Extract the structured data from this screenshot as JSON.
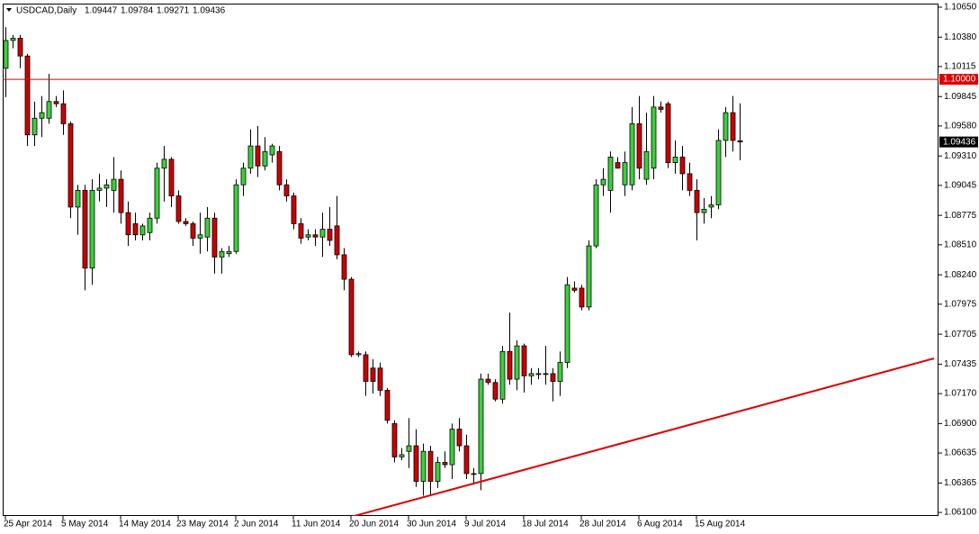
{
  "chart_data": {
    "type": "candlestick",
    "title": "USDCAD,Daily",
    "categories": [
      "25 Apr 2014",
      null,
      null,
      null,
      null,
      null,
      null,
      null,
      "5 May 2014",
      null,
      null,
      null,
      null,
      null,
      null,
      null,
      "14 May 2014",
      null,
      null,
      null,
      null,
      null,
      null,
      null,
      "23 May 2014",
      null,
      null,
      null,
      null,
      null,
      null,
      null,
      "2 Jun 2014",
      null,
      null,
      null,
      null,
      null,
      null,
      null,
      "11 Jun 2014",
      null,
      null,
      null,
      null,
      null,
      null,
      null,
      "20 Jun 2014",
      null,
      null,
      null,
      null,
      null,
      null,
      null,
      "30 Jun 2014",
      null,
      null,
      null,
      null,
      null,
      null,
      null,
      "9 Jul 2014",
      null,
      null,
      null,
      null,
      null,
      null,
      null,
      "18 Jul 2014",
      null,
      null,
      null,
      null,
      null,
      null,
      null,
      "28 Jul 2014",
      null,
      null,
      null,
      null,
      null,
      null,
      null,
      "6 Aug 2014",
      null,
      null,
      null,
      null,
      null,
      null,
      null,
      "15 Aug 2014",
      null,
      null,
      null,
      null,
      null,
      null
    ],
    "open": [
      1.101,
      1.1035,
      1.1037,
      1.1021,
      1.095,
      1.0965,
      1.0965,
      1.098,
      1.0978,
      1.096,
      1.0885,
      1.09,
      1.083,
      1.09,
      1.0902,
      1.09,
      1.091,
      1.088,
      1.087,
      1.086,
      1.0862,
      1.0875,
      1.092,
      1.0928,
      1.0895,
      1.0872,
      1.087,
      1.0857,
      1.0858,
      1.0875,
      1.084,
      1.0843,
      1.0845,
      1.0905,
      1.092,
      1.094,
      1.0922,
      1.0932,
      1.0935,
      1.0905,
      1.0895,
      1.087,
      1.0858,
      1.086,
      1.0858,
      1.0865,
      1.0868,
      1.0842,
      1.082,
      1.0752,
      1.0752,
      1.074,
      1.074,
      1.072,
      1.069,
      1.066,
      1.0665,
      1.067,
      1.0638,
      1.0665,
      1.0638,
      1.0655,
      1.0653,
      1.0685,
      1.067,
      1.0645,
      1.0645,
      1.073,
      1.0727,
      1.0712,
      1.0755,
      1.073,
      1.076,
      1.0733,
      1.0735,
      1.0735,
      1.0735,
      1.0728,
      1.0745,
      1.0812,
      1.0812,
      1.0795,
      1.085,
      1.0905,
      1.09,
      1.0925,
      1.0905,
      1.0905,
      1.096,
      1.091,
      1.092,
      1.0975,
      1.0978,
      1.0925,
      1.093,
      1.0915,
      1.09,
      1.088,
      1.0885,
      1.0887,
      1.0945,
      1.097,
      1.09447
    ],
    "high": [
      1.1047,
      1.104,
      1.104,
      1.1023,
      1.098,
      1.0985,
      1.1005,
      1.0985,
      1.099,
      1.0962,
      1.0905,
      1.0905,
      1.091,
      1.0915,
      1.091,
      1.093,
      1.0918,
      1.089,
      1.088,
      1.087,
      1.088,
      1.0925,
      1.094,
      1.093,
      1.09,
      1.0875,
      1.0872,
      1.088,
      1.0885,
      1.088,
      1.0848,
      1.085,
      1.091,
      1.0925,
      1.0955,
      1.0958,
      1.0948,
      1.0942,
      1.094,
      1.091,
      1.0898,
      1.0875,
      1.0865,
      1.0865,
      1.088,
      1.0885,
      1.0895,
      1.0848,
      1.0822,
      1.0755,
      1.0755,
      1.0748,
      1.0745,
      1.0722,
      1.0693,
      1.0668,
      1.0695,
      1.0685,
      1.0672,
      1.067,
      1.066,
      1.0665,
      1.069,
      1.0695,
      1.068,
      1.065,
      1.0735,
      1.0735,
      1.073,
      1.076,
      1.079,
      1.0765,
      1.0762,
      1.074,
      1.074,
      1.076,
      1.074,
      1.0755,
      1.0822,
      1.0818,
      1.0815,
      1.0855,
      1.091,
      1.092,
      1.0935,
      1.093,
      1.0935,
      1.0975,
      1.0985,
      1.097,
      1.0985,
      1.098,
      1.098,
      1.0945,
      1.094,
      1.0925,
      1.091,
      1.0893,
      1.0895,
      1.0955,
      1.0975,
      1.0985,
      1.09784
    ],
    "low": [
      1.0984,
      1.1028,
      1.101,
      1.094,
      1.094,
      1.0948,
      1.096,
      1.0975,
      1.095,
      1.0875,
      1.086,
      1.081,
      1.0815,
      1.089,
      1.0885,
      1.088,
      1.087,
      1.085,
      1.0855,
      1.0855,
      1.0855,
      1.087,
      1.089,
      1.0885,
      1.087,
      1.0868,
      1.085,
      1.0843,
      1.0845,
      1.0825,
      1.0825,
      1.084,
      1.0843,
      1.0895,
      1.0915,
      1.0912,
      1.0918,
      1.0925,
      1.09,
      1.089,
      1.0865,
      1.0852,
      1.0855,
      1.085,
      1.084,
      1.085,
      1.0838,
      1.081,
      1.075,
      1.075,
      1.0715,
      1.0717,
      1.0715,
      1.069,
      1.0655,
      1.0657,
      1.065,
      1.0633,
      1.0625,
      1.0625,
      1.0632,
      1.065,
      1.064,
      1.0665,
      1.064,
      1.0635,
      1.063,
      1.0725,
      1.071,
      1.0708,
      1.0725,
      1.072,
      1.0718,
      1.0725,
      1.073,
      1.0725,
      1.071,
      1.0715,
      1.074,
      1.0808,
      1.0792,
      1.0792,
      1.0848,
      1.0895,
      1.088,
      1.092,
      1.0895,
      1.09,
      1.091,
      1.0905,
      1.091,
      1.097,
      1.092,
      1.0915,
      1.09,
      1.0895,
      1.0855,
      1.087,
      1.0875,
      1.0883,
      1.093,
      1.0935,
      1.09271
    ],
    "close": [
      1.1035,
      1.1037,
      1.1021,
      1.095,
      1.0965,
      1.097,
      1.098,
      1.0978,
      1.096,
      1.0885,
      1.09,
      1.083,
      1.09,
      1.0902,
      1.0905,
      1.091,
      1.088,
      1.086,
      1.086,
      1.0868,
      1.0875,
      1.092,
      1.0928,
      1.0895,
      1.0872,
      1.087,
      1.0857,
      1.086,
      1.0875,
      1.084,
      1.0845,
      1.0845,
      1.0905,
      1.092,
      1.094,
      1.0922,
      1.0935,
      1.094,
      1.0905,
      1.0895,
      1.087,
      1.0857,
      1.086,
      1.0858,
      1.0865,
      1.0855,
      1.0842,
      1.082,
      1.0752,
      1.0753,
      1.0728,
      1.0728,
      1.072,
      1.0693,
      1.066,
      1.0662,
      1.067,
      1.0638,
      1.0665,
      1.0638,
      1.0655,
      1.0653,
      1.0685,
      1.067,
      1.0645,
      1.0645,
      1.073,
      1.0727,
      1.0712,
      1.0755,
      1.073,
      1.076,
      1.0733,
      1.0735,
      1.0735,
      1.0735,
      1.0728,
      1.0745,
      1.0815,
      1.081,
      1.0795,
      1.085,
      1.0905,
      1.091,
      1.093,
      1.092,
      1.0925,
      1.096,
      1.092,
      1.0935,
      1.0975,
      1.0973,
      1.0925,
      1.093,
      1.0915,
      1.09,
      1.088,
      1.0883,
      1.0887,
      1.0945,
      1.097,
      1.0945,
      1.09436
    ],
    "up_color": "#3ccf3c",
    "down_color": "#cc0000",
    "ylim": [
      1.06068,
      1.10682
    ],
    "yticks": [
      {
        "value": 1.1065,
        "label": "1.10650"
      },
      {
        "value": 1.1038,
        "label": "1.10380"
      },
      1.10115,
      1.09845,
      {
        "value": 1.0958,
        "label": "1.09580"
      },
      {
        "value": 1.0931,
        "label": "1.09310"
      },
      1.09045,
      1.08775,
      {
        "value": 1.0851,
        "label": "1.08510"
      },
      {
        "value": 1.0824,
        "label": "1.08240"
      },
      1.07975,
      1.07705,
      1.07435,
      {
        "value": 1.0717,
        "label": "1.07170"
      },
      {
        "value": 1.069,
        "label": "1.06900"
      },
      1.06635,
      1.06365,
      {
        "value": 1.061,
        "label": "1.06100"
      }
    ],
    "hline": {
      "value": 1.1,
      "label": "1.10000",
      "color": "#e00000"
    },
    "trendline": {
      "x": [
        48,
        129
      ],
      "y": [
        1.0606,
        1.07487
      ],
      "color": "#e00000"
    },
    "grid": false
  }
}
